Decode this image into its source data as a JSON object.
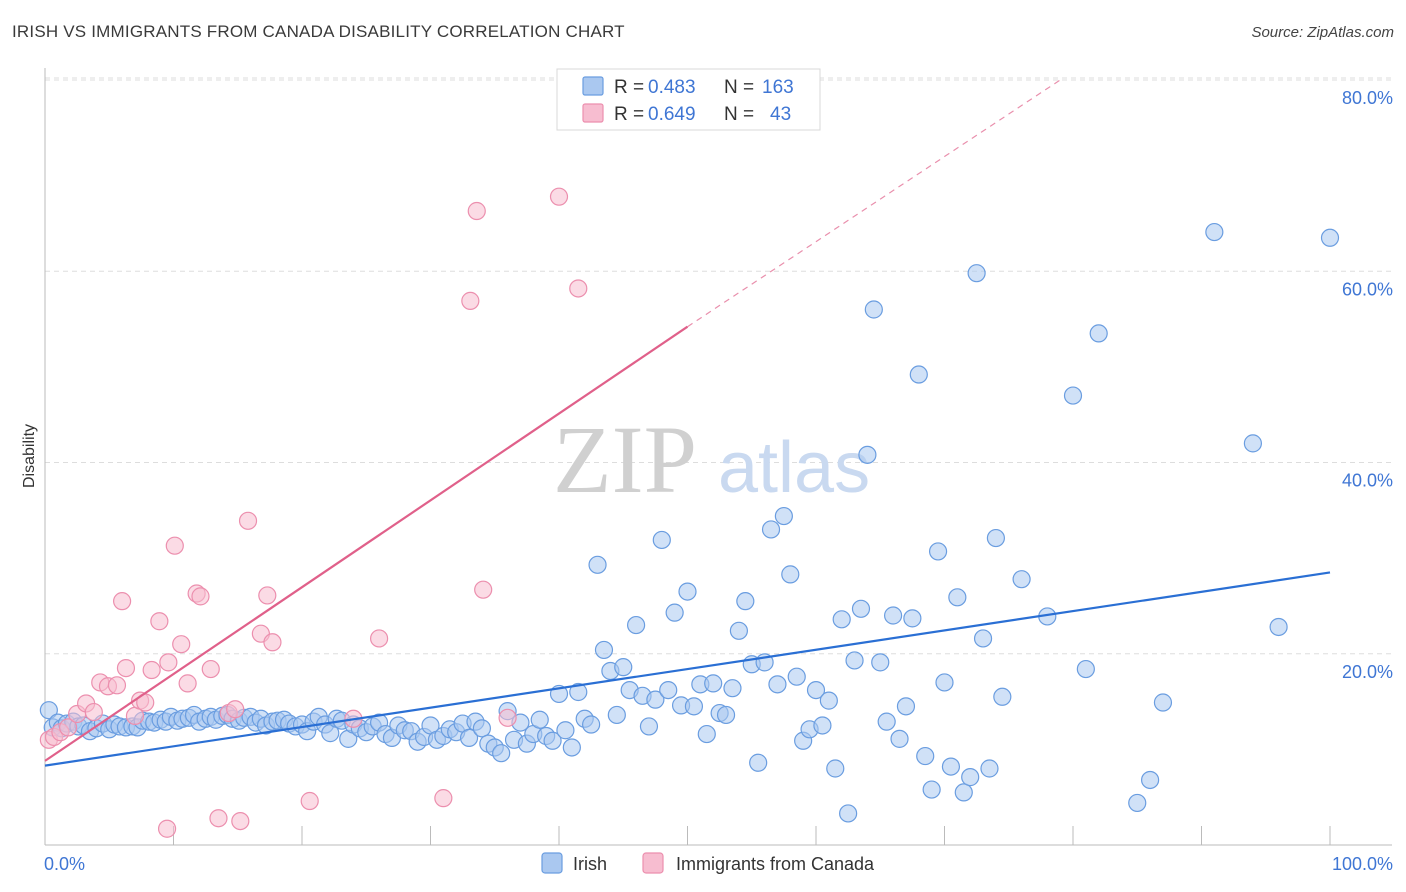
{
  "title": "IRISH VS IMMIGRANTS FROM CANADA DISABILITY CORRELATION CHART",
  "source": "Source: ZipAtlas.com",
  "watermark": {
    "zip": "ZIP",
    "atlas": "atlas"
  },
  "colors": {
    "irish_fill": "#aac8f0",
    "irish_stroke": "#6a9de0",
    "irish_line": "#2a6fd4",
    "canada_fill": "#f7bdd0",
    "canada_stroke": "#ec8fae",
    "canada_line": "#e0608a",
    "grid": "#dddddd",
    "tick_text": "#3f76d4"
  },
  "legend": {
    "rows": [
      {
        "r_label": "R =",
        "r_value": "0.483",
        "n_label": "N =",
        "n_value": "163"
      },
      {
        "r_label": "R =",
        "r_value": "0.649",
        "n_label": "N =",
        "n_value": "43"
      }
    ]
  },
  "chart_data": {
    "type": "scatter",
    "xlabel": "",
    "ylabel": "Disability",
    "xlim": [
      0,
      100
    ],
    "ylim": [
      0,
      80
    ],
    "x_ticks": [
      "0.0%",
      "100.0%"
    ],
    "y_ticks": [
      {
        "value": 20,
        "label": "20.0%"
      },
      {
        "value": 40,
        "label": "40.0%"
      },
      {
        "value": 60,
        "label": "60.0%"
      },
      {
        "value": 80,
        "label": "80.0%"
      }
    ],
    "grid": true,
    "legend_position": "top-center",
    "series": [
      {
        "name": "Irish",
        "trend": {
          "x0": 0,
          "y0": 8.3,
          "x1": 100,
          "y1": 28.5,
          "dashed_to": null
        },
        "points": [
          [
            0.3,
            14.1
          ],
          [
            0.6,
            12.3
          ],
          [
            1.0,
            12.8
          ],
          [
            1.3,
            12.2
          ],
          [
            1.7,
            12.7
          ],
          [
            2.2,
            12.9
          ],
          [
            2.6,
            12.4
          ],
          [
            3.0,
            12.5
          ],
          [
            3.5,
            11.9
          ],
          [
            4.0,
            12.2
          ],
          [
            4.5,
            12.7
          ],
          [
            5.0,
            12.1
          ],
          [
            5.4,
            12.6
          ],
          [
            5.8,
            12.4
          ],
          [
            6.3,
            12.3
          ],
          [
            6.8,
            12.4
          ],
          [
            7.2,
            12.3
          ],
          [
            7.6,
            13.0
          ],
          [
            8.1,
            12.9
          ],
          [
            8.5,
            12.8
          ],
          [
            9.0,
            13.1
          ],
          [
            9.4,
            12.9
          ],
          [
            9.8,
            13.4
          ],
          [
            10.3,
            13.0
          ],
          [
            10.7,
            13.2
          ],
          [
            11.2,
            13.3
          ],
          [
            11.6,
            13.6
          ],
          [
            12.0,
            12.9
          ],
          [
            12.5,
            13.2
          ],
          [
            12.9,
            13.4
          ],
          [
            13.3,
            13.1
          ],
          [
            13.8,
            13.5
          ],
          [
            14.2,
            13.6
          ],
          [
            14.6,
            13.2
          ],
          [
            15.1,
            13.0
          ],
          [
            15.5,
            13.3
          ],
          [
            16.0,
            13.4
          ],
          [
            16.4,
            12.8
          ],
          [
            16.8,
            13.2
          ],
          [
            17.2,
            12.5
          ],
          [
            17.7,
            12.9
          ],
          [
            18.1,
            13.0
          ],
          [
            18.6,
            13.1
          ],
          [
            19.0,
            12.7
          ],
          [
            19.5,
            12.4
          ],
          [
            20.0,
            12.6
          ],
          [
            20.4,
            11.9
          ],
          [
            20.9,
            12.9
          ],
          [
            21.3,
            13.4
          ],
          [
            21.8,
            12.6
          ],
          [
            22.2,
            11.7
          ],
          [
            22.7,
            13.2
          ],
          [
            23.1,
            13.0
          ],
          [
            23.6,
            11.1
          ],
          [
            24.0,
            12.6
          ],
          [
            24.5,
            12.2
          ],
          [
            25.0,
            11.8
          ],
          [
            25.5,
            12.4
          ],
          [
            26.0,
            12.8
          ],
          [
            26.5,
            11.6
          ],
          [
            27.0,
            11.2
          ],
          [
            27.5,
            12.5
          ],
          [
            28.0,
            12.0
          ],
          [
            28.5,
            11.9
          ],
          [
            29.0,
            10.8
          ],
          [
            29.5,
            11.3
          ],
          [
            30.0,
            12.5
          ],
          [
            30.5,
            11.0
          ],
          [
            31.0,
            11.4
          ],
          [
            31.5,
            12.1
          ],
          [
            32.0,
            11.8
          ],
          [
            32.5,
            12.7
          ],
          [
            33.0,
            11.2
          ],
          [
            33.5,
            12.9
          ],
          [
            34.0,
            12.2
          ],
          [
            34.5,
            10.6
          ],
          [
            35.0,
            10.2
          ],
          [
            35.5,
            9.6
          ],
          [
            36.0,
            14.0
          ],
          [
            36.5,
            11.0
          ],
          [
            37.0,
            12.8
          ],
          [
            37.5,
            10.6
          ],
          [
            38.0,
            11.6
          ],
          [
            38.5,
            13.1
          ],
          [
            39.0,
            11.4
          ],
          [
            39.5,
            10.9
          ],
          [
            40.0,
            15.8
          ],
          [
            40.5,
            12.0
          ],
          [
            41.0,
            10.2
          ],
          [
            41.5,
            16.0
          ],
          [
            42.0,
            13.2
          ],
          [
            42.5,
            12.6
          ],
          [
            43.0,
            29.3
          ],
          [
            43.5,
            20.4
          ],
          [
            44.0,
            18.2
          ],
          [
            44.5,
            13.6
          ],
          [
            45.0,
            18.6
          ],
          [
            45.5,
            16.2
          ],
          [
            46.0,
            23.0
          ],
          [
            46.5,
            15.6
          ],
          [
            47.0,
            12.4
          ],
          [
            47.5,
            15.2
          ],
          [
            48.0,
            31.9
          ],
          [
            48.5,
            16.2
          ],
          [
            49.0,
            24.3
          ],
          [
            49.5,
            14.6
          ],
          [
            50.0,
            26.5
          ],
          [
            50.5,
            14.5
          ],
          [
            51.0,
            16.8
          ],
          [
            51.5,
            11.6
          ],
          [
            52.0,
            16.9
          ],
          [
            52.5,
            13.8
          ],
          [
            53.0,
            13.6
          ],
          [
            53.5,
            16.4
          ],
          [
            54.0,
            22.4
          ],
          [
            54.5,
            25.5
          ],
          [
            55.0,
            18.9
          ],
          [
            55.5,
            8.6
          ],
          [
            56.0,
            19.1
          ],
          [
            56.5,
            33.0
          ],
          [
            57.0,
            16.8
          ],
          [
            57.5,
            34.4
          ],
          [
            58.0,
            28.3
          ],
          [
            58.5,
            17.6
          ],
          [
            59.0,
            10.9
          ],
          [
            59.5,
            12.1
          ],
          [
            60.0,
            16.2
          ],
          [
            60.5,
            12.5
          ],
          [
            61.0,
            15.1
          ],
          [
            61.5,
            8.0
          ],
          [
            62.0,
            23.6
          ],
          [
            62.5,
            3.3
          ],
          [
            63.0,
            19.3
          ],
          [
            63.5,
            24.7
          ],
          [
            64.0,
            40.8
          ],
          [
            64.5,
            56.0
          ],
          [
            65.0,
            19.1
          ],
          [
            65.5,
            12.9
          ],
          [
            66.0,
            24.0
          ],
          [
            66.5,
            11.1
          ],
          [
            67.0,
            14.5
          ],
          [
            67.5,
            23.7
          ],
          [
            68.0,
            49.2
          ],
          [
            68.5,
            9.3
          ],
          [
            69.0,
            5.8
          ],
          [
            69.5,
            30.7
          ],
          [
            70.0,
            17.0
          ],
          [
            70.5,
            8.2
          ],
          [
            71.0,
            25.9
          ],
          [
            71.5,
            5.5
          ],
          [
            72.0,
            7.1
          ],
          [
            72.5,
            59.8
          ],
          [
            73.0,
            21.6
          ],
          [
            73.5,
            8.0
          ],
          [
            74.0,
            32.1
          ],
          [
            74.5,
            15.5
          ],
          [
            76.0,
            27.8
          ],
          [
            78.0,
            23.9
          ],
          [
            80.0,
            47.0
          ],
          [
            81.0,
            18.4
          ],
          [
            82.0,
            53.5
          ],
          [
            85.0,
            4.4
          ],
          [
            86.0,
            6.8
          ],
          [
            87.0,
            14.9
          ],
          [
            91.0,
            64.1
          ],
          [
            94.0,
            42.0
          ],
          [
            96.0,
            22.8
          ],
          [
            100.0,
            63.5
          ]
        ]
      },
      {
        "name": "Immigrants from Canada",
        "trend": {
          "x0": 0,
          "y0": 8.8,
          "x1": 50,
          "y1": 54.2,
          "dashed_to": {
            "x": 79,
            "y": 80
          }
        },
        "points": [
          [
            0.3,
            11.0
          ],
          [
            0.7,
            11.3
          ],
          [
            1.2,
            11.8
          ],
          [
            1.8,
            12.3
          ],
          [
            2.5,
            13.7
          ],
          [
            3.2,
            14.8
          ],
          [
            3.8,
            13.9
          ],
          [
            4.3,
            17.0
          ],
          [
            4.9,
            16.6
          ],
          [
            5.6,
            16.7
          ],
          [
            6.0,
            25.5
          ],
          [
            6.3,
            18.5
          ],
          [
            7.0,
            13.5
          ],
          [
            7.4,
            15.1
          ],
          [
            7.8,
            14.9
          ],
          [
            8.3,
            18.3
          ],
          [
            8.9,
            23.4
          ],
          [
            9.6,
            19.1
          ],
          [
            10.1,
            31.3
          ],
          [
            10.6,
            21.0
          ],
          [
            11.1,
            16.9
          ],
          [
            11.8,
            26.3
          ],
          [
            12.1,
            26.0
          ],
          [
            12.9,
            18.4
          ],
          [
            13.5,
            2.8
          ],
          [
            14.3,
            13.8
          ],
          [
            14.8,
            14.2
          ],
          [
            15.2,
            2.5
          ],
          [
            15.8,
            33.9
          ],
          [
            16.8,
            22.1
          ],
          [
            17.3,
            26.1
          ],
          [
            17.7,
            21.2
          ],
          [
            20.6,
            4.6
          ],
          [
            26.0,
            21.6
          ],
          [
            31.0,
            4.9
          ],
          [
            33.1,
            56.9
          ],
          [
            33.6,
            66.3
          ],
          [
            34.1,
            26.7
          ],
          [
            36.0,
            13.3
          ],
          [
            40.0,
            67.8
          ],
          [
            41.5,
            58.2
          ],
          [
            9.5,
            1.7
          ],
          [
            24.0,
            13.2
          ]
        ]
      }
    ]
  },
  "bottom_legend": {
    "items": [
      "Irish",
      "Immigrants from Canada"
    ]
  }
}
